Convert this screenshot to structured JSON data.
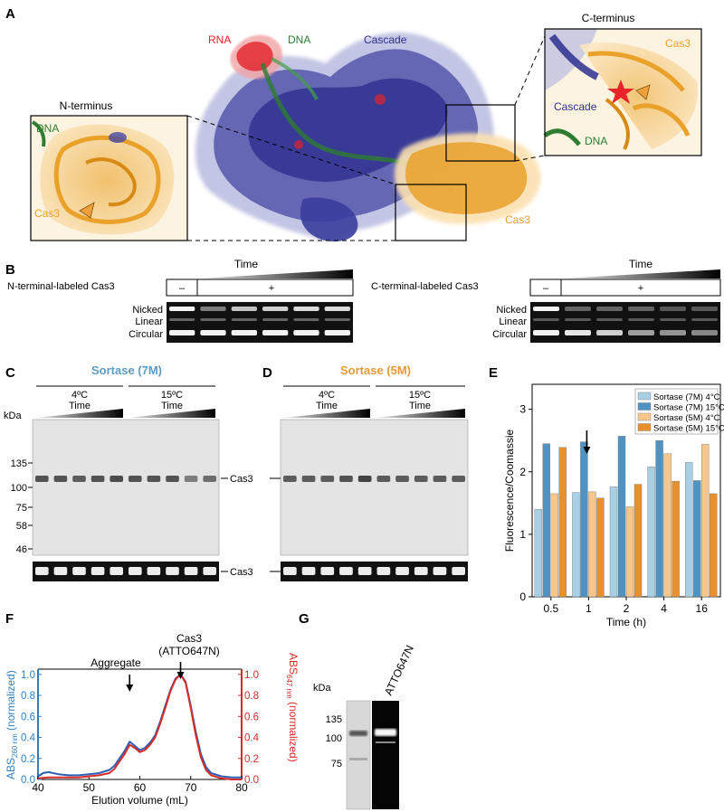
{
  "panels": {
    "A": "A",
    "B": "B",
    "C": "C",
    "D": "D",
    "E": "E",
    "F": "F",
    "G": "G"
  },
  "panel_a": {
    "rna": "RNA",
    "dna": "DNA",
    "cascade": "Cascade",
    "cas3": "Cas3",
    "n_terminus": "N-terminus",
    "c_terminus": "C-terminus",
    "n_dna": "DNA",
    "n_cas3": "Cas3",
    "c_cas3": "Cas3",
    "c_cascade": "Cascade",
    "c_dna": "DNA",
    "colors": {
      "rna": "#e2232a",
      "dna": "#2e7d32",
      "cascade": "#2d2f8f",
      "cas3": "#e9a12a"
    }
  },
  "panel_b": {
    "time": "Time",
    "minus": "–",
    "plus": "+",
    "n_label": "N-terminal-labeled Cas3",
    "c_label": "C-terminal-labeled Cas3",
    "bands": [
      "Nicked",
      "Linear",
      "Circular"
    ]
  },
  "panel_c": {
    "title": "Sortase (7M)",
    "t1": "4ºC",
    "t2": "15ºC",
    "time": "Time",
    "kda": "kDa",
    "markers": [
      "135",
      "100",
      "75",
      "58",
      "46"
    ],
    "cas3": "Cas3",
    "cas3_b": "Cas3",
    "color": "#5b9bc4"
  },
  "panel_d": {
    "title": "Sortase (5M)",
    "t1": "4ºC",
    "t2": "15ºC",
    "time": "Time",
    "color": "#e39a3b"
  },
  "panel_e": {
    "chart_data": {
      "type": "bar",
      "ylabel": "Fluorescence/Coomassie",
      "xlabel": "Time (h)",
      "categories": [
        "0.5",
        "1",
        "2",
        "4",
        "16"
      ],
      "yticks": [
        "0",
        "1",
        "2",
        "3"
      ],
      "ylim": [
        0,
        3.4
      ],
      "legend_position": "top-right",
      "series": [
        {
          "name": "Sortase (7M) 4°C",
          "color": "#a9cfe4",
          "values": [
            1.4,
            1.67,
            1.76,
            2.08,
            2.15
          ]
        },
        {
          "name": "Sortase (7M) 15°C",
          "color": "#4f93c2",
          "values": [
            2.45,
            2.48,
            2.57,
            2.5,
            1.86
          ]
        },
        {
          "name": "Sortase (5M) 4°C",
          "color": "#f6c68b",
          "values": [
            1.65,
            1.68,
            1.44,
            2.29,
            2.44
          ]
        },
        {
          "name": "Sortase (5M) 15°C",
          "color": "#e8902c",
          "values": [
            2.39,
            1.58,
            1.8,
            1.85,
            1.65
          ]
        }
      ],
      "annotation": "arrow above 1 h"
    }
  },
  "panel_f": {
    "chart_data": {
      "type": "line",
      "xlabel": "Elution volume (mL)",
      "ylabel_left": "ABS260 nm (normalized)",
      "ylabel_right": "ABS647 nm (normalized)",
      "xlim": [
        40,
        80
      ],
      "ylim": [
        0,
        1.05
      ],
      "xticks": [
        "40",
        "50",
        "60",
        "70",
        "80"
      ],
      "yticks": [
        "0.0",
        "0.2",
        "0.4",
        "0.6",
        "0.8",
        "1.0"
      ],
      "series": [
        {
          "name": "ABS260 nm",
          "color": "#2f5fb3",
          "x": [
            40,
            41,
            42,
            44,
            46,
            48,
            50,
            52,
            54,
            55,
            56,
            57,
            58,
            59,
            60,
            61,
            62,
            63,
            64,
            65,
            66,
            67,
            68,
            69,
            70,
            71,
            72,
            73,
            74,
            76,
            78,
            80
          ],
          "y": [
            0.03,
            0.06,
            0.07,
            0.05,
            0.04,
            0.04,
            0.05,
            0.06,
            0.09,
            0.13,
            0.2,
            0.27,
            0.36,
            0.32,
            0.28,
            0.3,
            0.35,
            0.42,
            0.55,
            0.7,
            0.85,
            0.96,
            1.0,
            0.93,
            0.7,
            0.45,
            0.24,
            0.12,
            0.06,
            0.03,
            0.02,
            0.02
          ]
        },
        {
          "name": "ABS647 nm",
          "color": "#d92a2a",
          "x": [
            40,
            42,
            44,
            46,
            48,
            50,
            52,
            54,
            55,
            56,
            57,
            58,
            59,
            60,
            61,
            62,
            63,
            64,
            65,
            66,
            67,
            68,
            69,
            70,
            71,
            72,
            73,
            74,
            76,
            78,
            80
          ],
          "y": [
            0.01,
            0.02,
            0.02,
            0.02,
            0.02,
            0.03,
            0.04,
            0.06,
            0.1,
            0.17,
            0.24,
            0.33,
            0.3,
            0.26,
            0.28,
            0.33,
            0.4,
            0.53,
            0.68,
            0.84,
            0.95,
            1.0,
            0.92,
            0.68,
            0.42,
            0.21,
            0.09,
            0.04,
            0.01,
            0.0,
            0.0
          ]
        }
      ],
      "annotations": [
        {
          "text": "Aggregate",
          "x": 58
        },
        {
          "text": "Cas3 (ATTO647N)",
          "x": 68
        }
      ],
      "colors": {
        "left_axis": "#2f7fc0",
        "right_axis": "#d92a2a"
      }
    },
    "aggregate": "Aggregate",
    "cas3_line1": "Cas3",
    "cas3_line2": "(ATTO647N)",
    "abs_left_main": "ABS",
    "abs_left_sub": "260 nm",
    "abs_left_rest": " (normalized)",
    "abs_right_main": "ABS",
    "abs_right_sub": "647 nm",
    "abs_right_rest": " (normalized)"
  },
  "panel_g": {
    "kda": "kDa",
    "markers": [
      "135",
      "100",
      "75"
    ],
    "lane_label": "ATTO647N"
  }
}
